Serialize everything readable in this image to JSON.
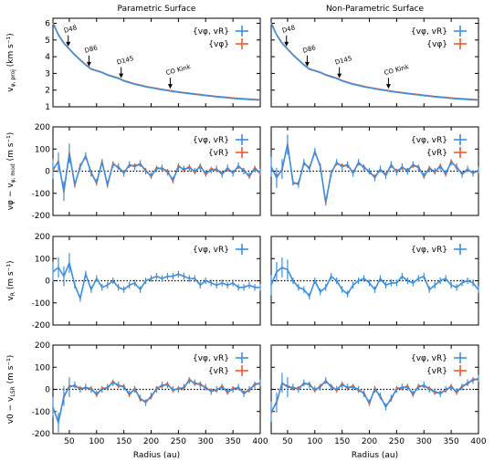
{
  "colors": {
    "blue": "#3b8fe0",
    "orange": "#f0592a",
    "axis": "#000000",
    "zero_line": "#000000"
  },
  "column_titles": [
    "Parametric Surface",
    "Non-Parametric Surface"
  ],
  "xlabel": "Radius (au)",
  "x_range": [
    20,
    400
  ],
  "x_ticks": [
    50,
    100,
    150,
    200,
    250,
    300,
    350,
    400
  ],
  "rows": [
    {
      "id": "vphi_proj",
      "ylabel_main": "v",
      "ylabel_sub": "φ, proj",
      "units": "(km s⁻¹)",
      "y_range": [
        1,
        6.3
      ],
      "y_ticks": [
        1,
        2,
        3,
        4,
        5,
        6
      ],
      "legend": [
        "{vφ, vR}",
        "{vφ}"
      ]
    },
    {
      "id": "vphi_resid",
      "ylabel_main": "vφ − v",
      "ylabel_sub": "φ, mod",
      "units": "(m s⁻¹)",
      "y_range": [
        -200,
        200
      ],
      "y_ticks": [
        -200,
        -100,
        0,
        100,
        200
      ],
      "legend": [
        "{vφ, vR}",
        "{vR}"
      ]
    },
    {
      "id": "vR",
      "ylabel_main": "v",
      "ylabel_sub": "R",
      "units": "(m s⁻¹)",
      "y_range": [
        -200,
        200
      ],
      "y_ticks": [
        -200,
        -100,
        0,
        100,
        200
      ],
      "legend": [
        "{vφ, vR}"
      ]
    },
    {
      "id": "v0",
      "ylabel_main": "v0 − v",
      "ylabel_sub": "LSR",
      "units": "(m s⁻¹)",
      "y_range": [
        -200,
        200
      ],
      "y_ticks": [
        -200,
        -100,
        0,
        100,
        200
      ],
      "legend": [
        "{vφ, vR}",
        "{vR}"
      ]
    }
  ],
  "annotations": [
    {
      "label": "D48",
      "x": 48
    },
    {
      "label": "D86",
      "x": 86
    },
    {
      "label": "D145",
      "x": 145
    },
    {
      "label": "CO Kink",
      "x": 235
    }
  ],
  "chart_data": {
    "type": "line",
    "x": [
      20,
      30,
      40,
      50,
      60,
      70,
      80,
      90,
      100,
      110,
      120,
      130,
      140,
      150,
      160,
      170,
      180,
      190,
      200,
      210,
      220,
      230,
      240,
      250,
      260,
      270,
      280,
      290,
      300,
      310,
      320,
      330,
      340,
      350,
      360,
      370,
      380,
      390,
      400
    ],
    "series": {
      "vphi_proj": [
        6.0,
        5.3,
        4.8,
        4.45,
        4.1,
        3.8,
        3.5,
        3.25,
        3.15,
        3.05,
        2.9,
        2.8,
        2.7,
        2.55,
        2.45,
        2.35,
        2.28,
        2.2,
        2.14,
        2.08,
        2.02,
        1.97,
        1.92,
        1.87,
        1.83,
        1.79,
        1.75,
        1.71,
        1.67,
        1.64,
        1.6,
        1.57,
        1.54,
        1.51,
        1.48,
        1.46,
        1.44,
        1.42,
        1.4
      ],
      "vphi_resid_left": [
        10,
        40,
        -90,
        80,
        -60,
        20,
        70,
        -10,
        -50,
        40,
        -60,
        30,
        20,
        -10,
        30,
        20,
        35,
        0,
        -20,
        10,
        15,
        -5,
        -40,
        20,
        10,
        15,
        0,
        20,
        -10,
        5,
        10,
        -15,
        15,
        -10,
        25,
        0,
        -20,
        10,
        -5
      ],
      "vphi_resid_right": [
        20,
        -30,
        10,
        120,
        -50,
        -60,
        40,
        10,
        90,
        20,
        -140,
        -10,
        40,
        20,
        30,
        -10,
        40,
        15,
        0,
        -30,
        10,
        -20,
        30,
        -5,
        20,
        0,
        30,
        15,
        -20,
        10,
        0,
        20,
        -10,
        40,
        20,
        -15,
        10,
        -10,
        5
      ],
      "vR_left": [
        40,
        60,
        20,
        80,
        -20,
        -80,
        30,
        -40,
        10,
        -30,
        -20,
        0,
        -30,
        -40,
        -20,
        -10,
        -40,
        0,
        10,
        20,
        10,
        20,
        20,
        30,
        20,
        10,
        10,
        -20,
        0,
        -10,
        -20,
        -10,
        -20,
        -10,
        -30,
        -30,
        -20,
        -30,
        -30
      ],
      "vR_right": [
        -20,
        40,
        60,
        50,
        0,
        -30,
        -40,
        -70,
        0,
        -50,
        -30,
        20,
        0,
        -40,
        -60,
        -20,
        0,
        10,
        -10,
        -40,
        10,
        -20,
        -10,
        -10,
        20,
        0,
        -10,
        10,
        20,
        -40,
        -20,
        0,
        10,
        -20,
        -30,
        -10,
        0,
        -10,
        -40
      ],
      "v0_left": [
        -80,
        -150,
        -30,
        10,
        20,
        0,
        10,
        0,
        -20,
        0,
        10,
        30,
        20,
        10,
        -20,
        0,
        -40,
        -60,
        -30,
        0,
        20,
        20,
        0,
        0,
        10,
        40,
        30,
        20,
        10,
        -10,
        0,
        10,
        -10,
        0,
        10,
        -20,
        0,
        20,
        30
      ],
      "v0_right": [
        -100,
        -60,
        30,
        10,
        10,
        0,
        30,
        20,
        0,
        10,
        40,
        10,
        0,
        20,
        10,
        10,
        0,
        -20,
        -60,
        0,
        -30,
        -80,
        -40,
        0,
        10,
        10,
        -20,
        10,
        20,
        0,
        -10,
        -20,
        0,
        10,
        -10,
        10,
        30,
        40,
        50
      ]
    }
  }
}
